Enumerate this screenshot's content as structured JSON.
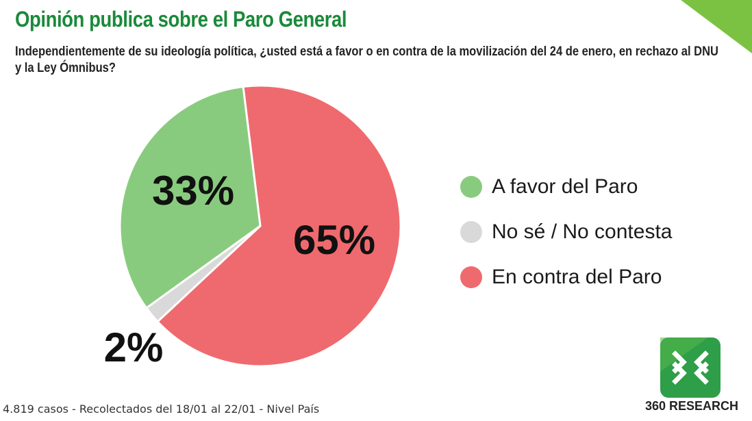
{
  "title": "Opinión publica sobre el Paro General",
  "subtitle": "Independientemente de su ideología política, ¿usted está a favor o en contra de la movilización del 24 de enero, en rechazo al DNU y la Ley Ómnibus?",
  "footer": "4.819 casos - Recolectados del 18/01 al 22/01 - Nivel País",
  "brand": {
    "name": "360 RESEARCH",
    "logo_icon": "360-research-logo-icon",
    "accent_color": "#7cc242",
    "title_color": "#1a8a3a"
  },
  "chart_data": {
    "type": "pie",
    "legend_position": "right",
    "start": "top, clockwise",
    "slices": [
      {
        "label": "En contra del Paro",
        "value": 65,
        "display": "65%",
        "color": "#ef6a6e"
      },
      {
        "label": "No sé / No contesta",
        "value": 2,
        "display": "2%",
        "color": "#d9d9d9"
      },
      {
        "label": "A favor del Paro",
        "value": 33,
        "display": "33%",
        "color": "#89cb7e"
      }
    ],
    "legend": [
      {
        "label": "A favor del Paro",
        "color": "#89cb7e"
      },
      {
        "label": "No sé / No contesta",
        "color": "#d9d9d9"
      },
      {
        "label": "En contra del Paro",
        "color": "#ef6a6e"
      }
    ]
  }
}
